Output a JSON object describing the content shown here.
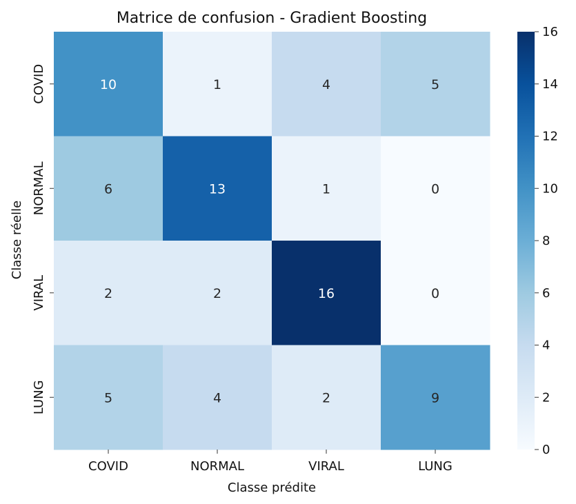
{
  "chart_data": {
    "type": "heatmap",
    "title": "Matrice de confusion - Gradient Boosting",
    "xlabel": "Classe prédite",
    "ylabel": "Classe réelle",
    "x_categories": [
      "COVID",
      "NORMAL",
      "VIRAL",
      "LUNG"
    ],
    "y_categories": [
      "COVID",
      "NORMAL",
      "VIRAL",
      "LUNG"
    ],
    "values": [
      [
        10,
        1,
        4,
        5
      ],
      [
        6,
        13,
        1,
        0
      ],
      [
        2,
        2,
        16,
        0
      ],
      [
        5,
        4,
        2,
        9
      ]
    ],
    "colorbar": {
      "range": [
        0,
        16
      ],
      "ticks": [
        0,
        2,
        4,
        6,
        8,
        10,
        12,
        14,
        16
      ]
    },
    "colormap": "Blues",
    "annotations": true
  }
}
